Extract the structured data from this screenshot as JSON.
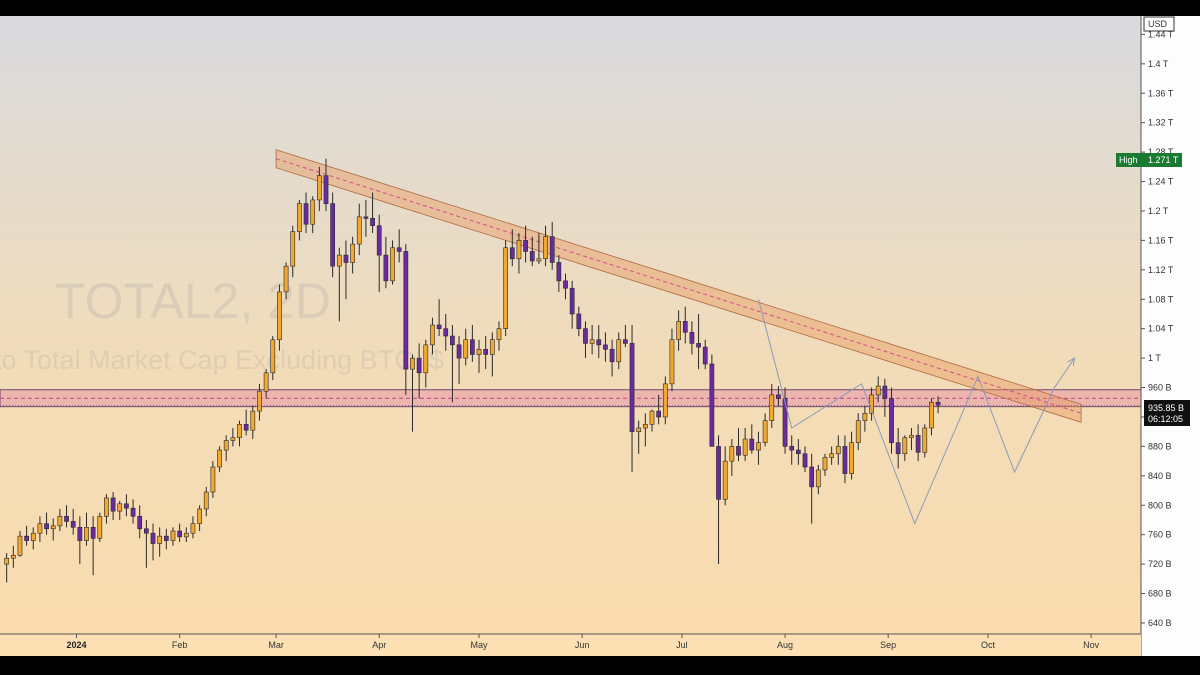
{
  "header": {
    "currency": "USD"
  },
  "watermark": {
    "symbol": "TOTAL2, 2D",
    "description": "to Total Market Cap Excluding BTC, $"
  },
  "price_labels": {
    "high_label": "High",
    "high_value": "1.271 T",
    "current_price": "935.85 B",
    "countdown": "06:12:05"
  },
  "colors": {
    "bull": "#f0a830",
    "bear": "#6a2aa0",
    "resistance_band": "#e89a60",
    "support_band": "#e070a0",
    "high_label_bg": "#1b7a32",
    "current_label_bg": "#111111"
  },
  "chart_data": {
    "type": "candlestick",
    "symbol": "TOTAL2",
    "timeframe": "2D",
    "y_unit": "USD",
    "y_range": [
      625000000000,
      1465000000000
    ],
    "y_ticks": [
      {
        "value": 640000000000,
        "label": "640 B"
      },
      {
        "value": 680000000000,
        "label": "680 B"
      },
      {
        "value": 720000000000,
        "label": "720 B"
      },
      {
        "value": 760000000000,
        "label": "760 B"
      },
      {
        "value": 800000000000,
        "label": "800 B"
      },
      {
        "value": 840000000000,
        "label": "840 B"
      },
      {
        "value": 880000000000,
        "label": "880 B"
      },
      {
        "value": 920000000000,
        "label": "920 B"
      },
      {
        "value": 960000000000,
        "label": "960 B"
      },
      {
        "value": 1000000000000,
        "label": "1 T"
      },
      {
        "value": 1040000000000,
        "label": "1.04 T"
      },
      {
        "value": 1080000000000,
        "label": "1.08 T"
      },
      {
        "value": 1120000000000,
        "label": "1.12 T"
      },
      {
        "value": 1160000000000,
        "label": "1.16 T"
      },
      {
        "value": 1200000000000,
        "label": "1.2 T"
      },
      {
        "value": 1240000000000,
        "label": "1.24 T"
      },
      {
        "value": 1280000000000,
        "label": "1.28 T"
      },
      {
        "value": 1320000000000,
        "label": "1.32 T"
      },
      {
        "value": 1360000000000,
        "label": "1.36 T"
      },
      {
        "value": 1400000000000,
        "label": "1.4 T"
      },
      {
        "value": 1440000000000,
        "label": "1.44 T"
      }
    ],
    "x_ticks": [
      {
        "date": "2024-01-01",
        "label": "2024",
        "bold": true
      },
      {
        "date": "2024-02-01",
        "label": "Feb"
      },
      {
        "date": "2024-03-01",
        "label": "Mar"
      },
      {
        "date": "2024-04-01",
        "label": "Apr"
      },
      {
        "date": "2024-05-01",
        "label": "May"
      },
      {
        "date": "2024-06-01",
        "label": "Jun"
      },
      {
        "date": "2024-07-01",
        "label": "Jul"
      },
      {
        "date": "2024-08-01",
        "label": "Aug"
      },
      {
        "date": "2024-09-01",
        "label": "Sep"
      },
      {
        "date": "2024-10-01",
        "label": "Oct"
      },
      {
        "date": "2024-11-01",
        "label": "Nov"
      }
    ],
    "x_range": [
      "2023-12-09",
      "2024-11-16"
    ],
    "candle_interval_days": 2,
    "first_candle_date": "2023-12-11",
    "candles": [
      [
        720,
        735,
        695,
        728
      ],
      [
        728,
        745,
        715,
        732
      ],
      [
        732,
        765,
        730,
        758
      ],
      [
        758,
        772,
        745,
        752
      ],
      [
        752,
        770,
        740,
        762
      ],
      [
        762,
        785,
        750,
        775
      ],
      [
        775,
        790,
        760,
        768
      ],
      [
        768,
        782,
        752,
        772
      ],
      [
        772,
        795,
        765,
        785
      ],
      [
        785,
        800,
        770,
        778
      ],
      [
        778,
        795,
        760,
        770
      ],
      [
        770,
        785,
        720,
        752
      ],
      [
        752,
        790,
        745,
        770
      ],
      [
        770,
        785,
        705,
        755
      ],
      [
        755,
        790,
        750,
        785
      ],
      [
        785,
        815,
        775,
        810
      ],
      [
        810,
        818,
        780,
        792
      ],
      [
        792,
        806,
        780,
        802
      ],
      [
        802,
        815,
        785,
        796
      ],
      [
        796,
        808,
        775,
        785
      ],
      [
        785,
        800,
        755,
        768
      ],
      [
        768,
        780,
        715,
        762
      ],
      [
        762,
        775,
        725,
        748
      ],
      [
        748,
        770,
        730,
        758
      ],
      [
        758,
        768,
        740,
        752
      ],
      [
        752,
        770,
        745,
        765
      ],
      [
        765,
        775,
        750,
        757
      ],
      [
        757,
        770,
        750,
        762
      ],
      [
        762,
        785,
        755,
        775
      ],
      [
        775,
        800,
        765,
        795
      ],
      [
        795,
        825,
        785,
        818
      ],
      [
        818,
        860,
        810,
        852
      ],
      [
        852,
        880,
        845,
        875
      ],
      [
        875,
        895,
        860,
        888
      ],
      [
        888,
        905,
        880,
        892
      ],
      [
        892,
        915,
        880,
        910
      ],
      [
        910,
        930,
        895,
        902
      ],
      [
        902,
        935,
        890,
        928
      ],
      [
        928,
        965,
        915,
        955
      ],
      [
        955,
        985,
        945,
        980
      ],
      [
        980,
        1030,
        970,
        1025
      ],
      [
        1025,
        1100,
        1010,
        1090
      ],
      [
        1090,
        1130,
        1080,
        1125
      ],
      [
        1125,
        1180,
        1110,
        1172
      ],
      [
        1172,
        1215,
        1160,
        1210
      ],
      [
        1210,
        1225,
        1170,
        1182
      ],
      [
        1182,
        1220,
        1170,
        1215
      ],
      [
        1215,
        1260,
        1200,
        1248
      ],
      [
        1248,
        1271,
        1200,
        1210
      ],
      [
        1210,
        1225,
        1110,
        1125
      ],
      [
        1125,
        1150,
        1050,
        1140
      ],
      [
        1140,
        1160,
        1080,
        1130
      ],
      [
        1130,
        1165,
        1115,
        1155
      ],
      [
        1155,
        1210,
        1140,
        1192
      ],
      [
        1192,
        1215,
        1165,
        1190
      ],
      [
        1190,
        1225,
        1170,
        1180
      ],
      [
        1180,
        1195,
        1090,
        1140
      ],
      [
        1140,
        1165,
        1095,
        1105
      ],
      [
        1105,
        1160,
        1100,
        1150
      ],
      [
        1150,
        1175,
        1130,
        1145
      ],
      [
        1145,
        1155,
        950,
        985
      ],
      [
        985,
        1005,
        900,
        1000
      ],
      [
        1000,
        1020,
        945,
        980
      ],
      [
        980,
        1025,
        960,
        1018
      ],
      [
        1018,
        1055,
        1005,
        1045
      ],
      [
        1045,
        1080,
        1030,
        1040
      ],
      [
        1040,
        1060,
        1010,
        1030
      ],
      [
        1030,
        1045,
        940,
        1018
      ],
      [
        1018,
        1030,
        965,
        1000
      ],
      [
        1000,
        1040,
        990,
        1025
      ],
      [
        1025,
        1045,
        995,
        1005
      ],
      [
        1005,
        1025,
        980,
        1012
      ],
      [
        1012,
        1030,
        985,
        1005
      ],
      [
        1005,
        1035,
        975,
        1025
      ],
      [
        1025,
        1050,
        1010,
        1040
      ],
      [
        1040,
        1160,
        1030,
        1150
      ],
      [
        1150,
        1175,
        1125,
        1135
      ],
      [
        1135,
        1170,
        1115,
        1160
      ],
      [
        1160,
        1180,
        1130,
        1145
      ],
      [
        1145,
        1165,
        1125,
        1132
      ],
      [
        1132,
        1170,
        1128,
        1135
      ],
      [
        1135,
        1180,
        1125,
        1165
      ],
      [
        1165,
        1185,
        1120,
        1130
      ],
      [
        1130,
        1140,
        1090,
        1105
      ],
      [
        1105,
        1115,
        1080,
        1095
      ],
      [
        1095,
        1105,
        1040,
        1060
      ],
      [
        1060,
        1070,
        1030,
        1040
      ],
      [
        1040,
        1050,
        1000,
        1020
      ],
      [
        1020,
        1045,
        1005,
        1025
      ],
      [
        1025,
        1045,
        1000,
        1018
      ],
      [
        1018,
        1035,
        995,
        1012
      ],
      [
        1012,
        1025,
        975,
        995
      ],
      [
        995,
        1035,
        985,
        1025
      ],
      [
        1025,
        1045,
        1015,
        1020
      ],
      [
        1020,
        1045,
        845,
        900
      ],
      [
        900,
        915,
        870,
        905
      ],
      [
        905,
        925,
        880,
        910
      ],
      [
        910,
        930,
        900,
        928
      ],
      [
        928,
        950,
        910,
        920
      ],
      [
        920,
        975,
        910,
        965
      ],
      [
        965,
        1040,
        955,
        1025
      ],
      [
        1025,
        1065,
        1010,
        1050
      ],
      [
        1050,
        1070,
        1020,
        1035
      ],
      [
        1035,
        1050,
        1005,
        1020
      ],
      [
        1020,
        1060,
        985,
        1015
      ],
      [
        1015,
        1025,
        985,
        992
      ],
      [
        992,
        1005,
        880,
        880
      ],
      [
        880,
        895,
        720,
        808
      ],
      [
        808,
        880,
        800,
        860
      ],
      [
        860,
        890,
        840,
        880
      ],
      [
        880,
        905,
        860,
        868
      ],
      [
        868,
        905,
        860,
        890
      ],
      [
        890,
        910,
        870,
        875
      ],
      [
        875,
        900,
        855,
        885
      ],
      [
        885,
        925,
        880,
        915
      ],
      [
        915,
        965,
        905,
        950
      ],
      [
        950,
        962,
        935,
        945
      ],
      [
        945,
        960,
        870,
        880
      ],
      [
        880,
        895,
        855,
        875
      ],
      [
        875,
        890,
        855,
        870
      ],
      [
        870,
        880,
        845,
        852
      ],
      [
        852,
        870,
        775,
        825
      ],
      [
        825,
        855,
        815,
        848
      ],
      [
        848,
        870,
        840,
        865
      ],
      [
        865,
        880,
        855,
        870
      ],
      [
        870,
        895,
        855,
        880
      ],
      [
        880,
        895,
        830,
        843
      ],
      [
        843,
        900,
        835,
        885
      ],
      [
        885,
        925,
        875,
        915
      ],
      [
        915,
        935,
        900,
        925
      ],
      [
        925,
        960,
        915,
        950
      ],
      [
        950,
        975,
        940,
        962
      ],
      [
        962,
        972,
        920,
        945
      ],
      [
        945,
        960,
        870,
        885
      ],
      [
        885,
        905,
        850,
        870
      ],
      [
        870,
        895,
        860,
        892
      ],
      [
        892,
        905,
        875,
        895
      ],
      [
        895,
        910,
        860,
        872
      ],
      [
        872,
        910,
        865,
        905
      ],
      [
        905,
        945,
        895,
        940
      ],
      [
        940,
        948,
        925,
        935.85
      ]
    ],
    "overlays": [
      {
        "type": "resistance_channel",
        "from": {
          "date": "2024-03-01",
          "value": 1271000000000
        },
        "to": {
          "date": "2024-10-29",
          "value": 925000000000
        }
      },
      {
        "type": "support_zone",
        "from_value": 934000000000,
        "to_value": 957000000000
      }
    ],
    "title": "TOTAL2, 2D",
    "xlabel": "",
    "ylabel": ""
  }
}
